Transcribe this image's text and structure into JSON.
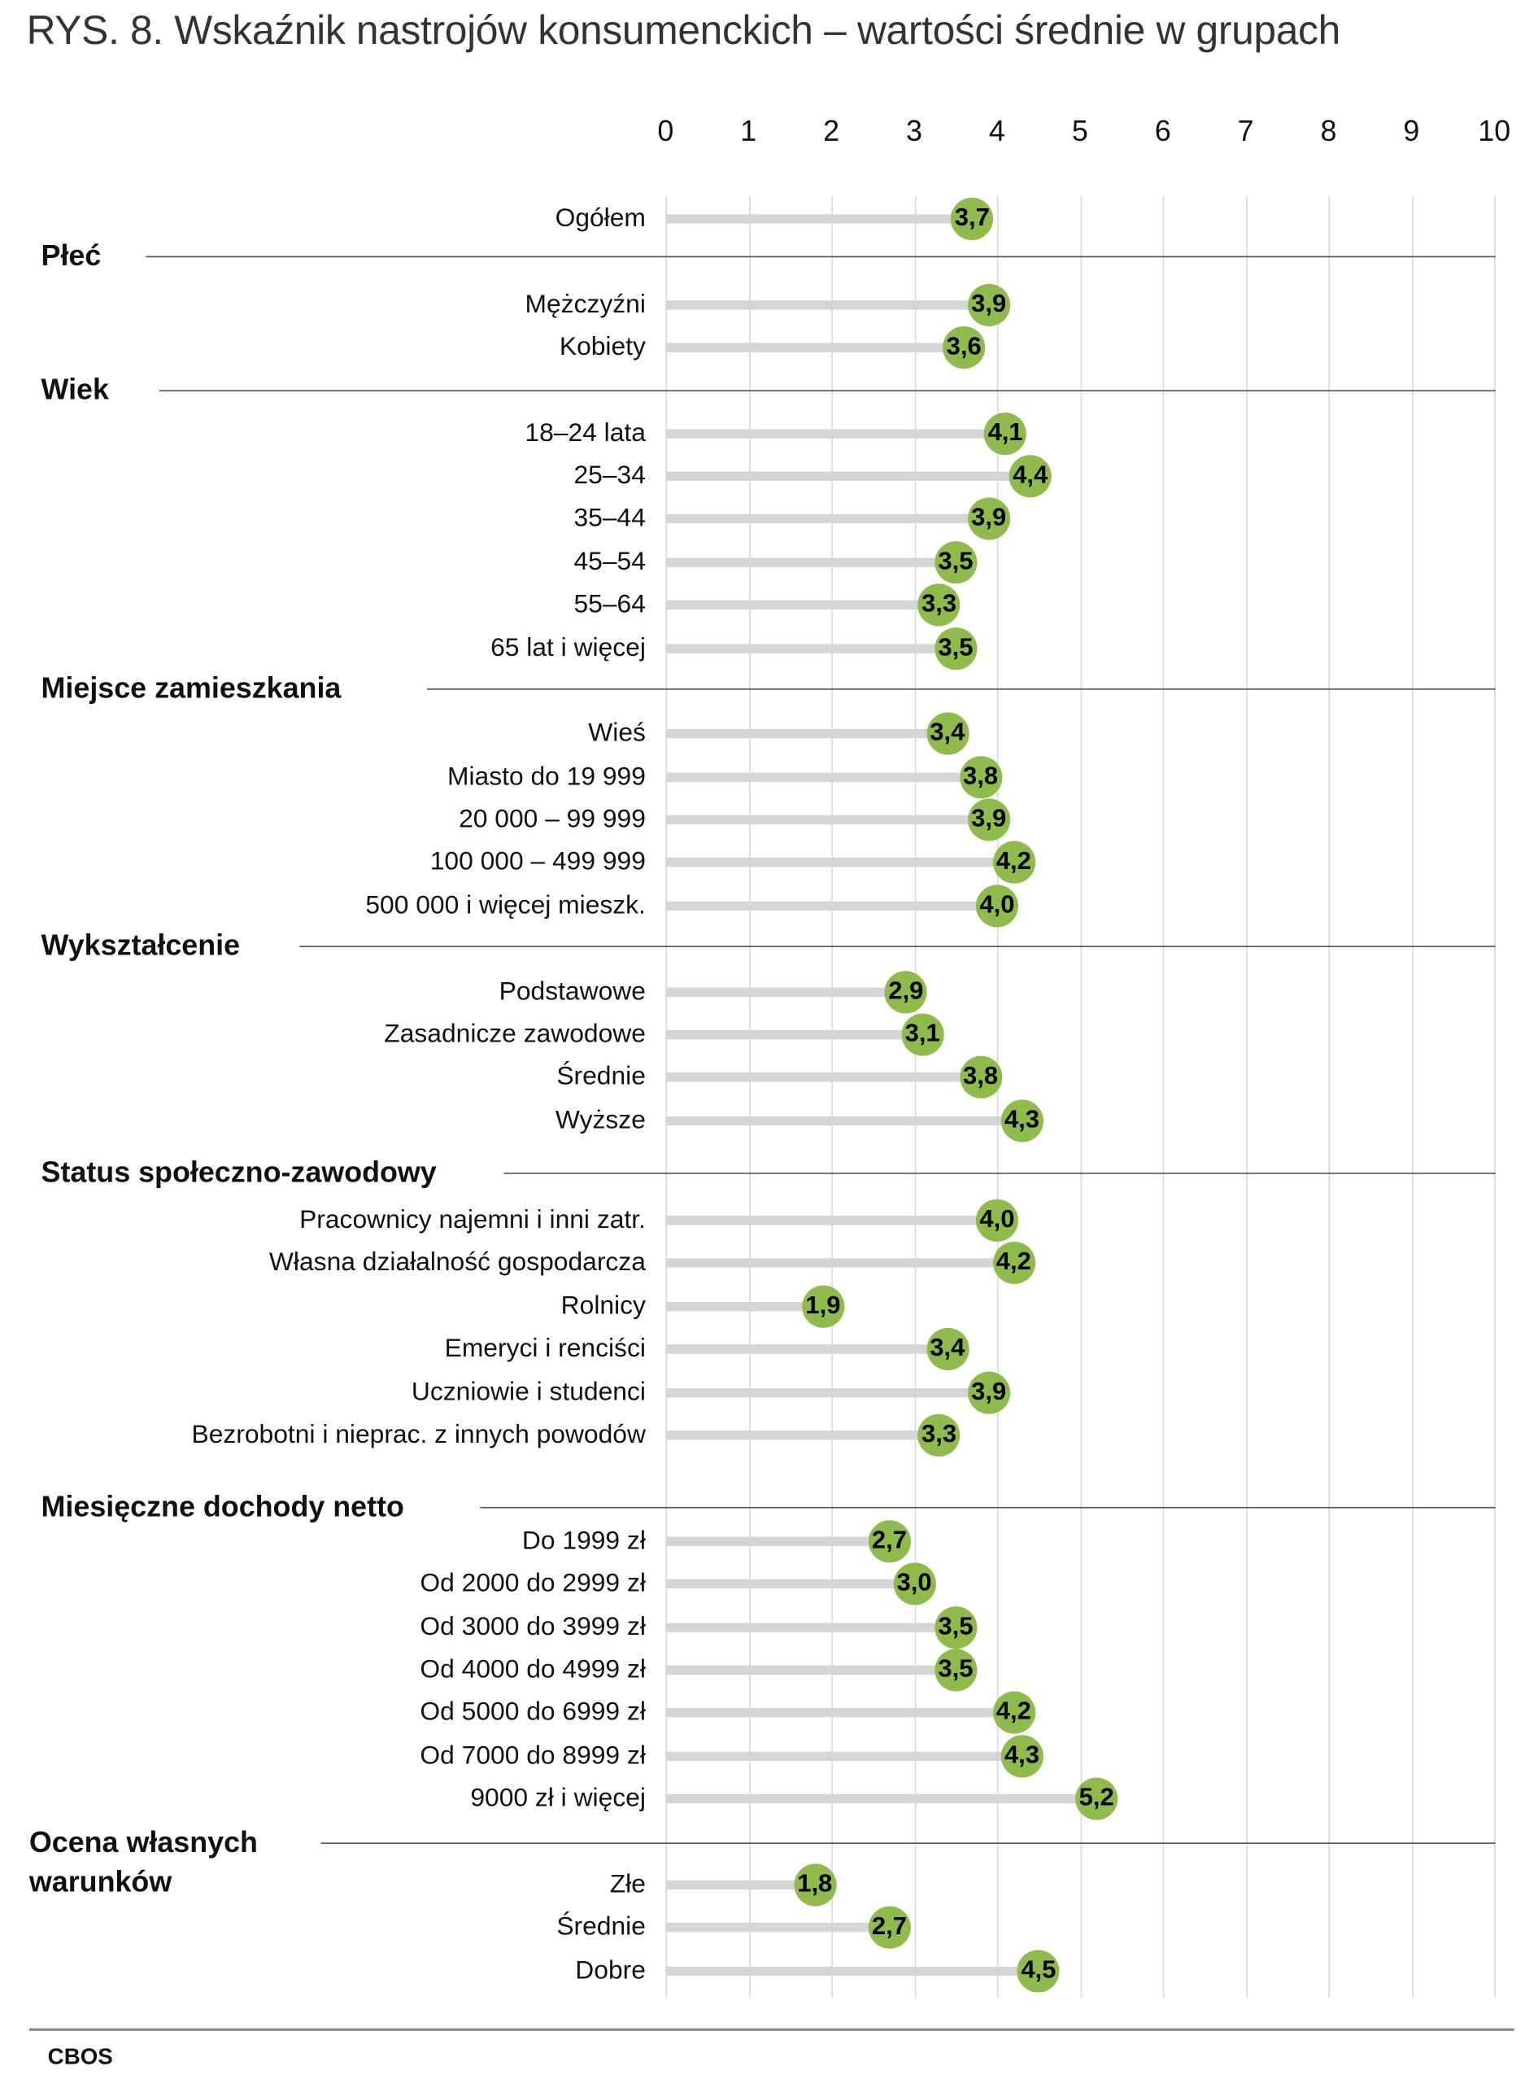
{
  "chart_data": {
    "type": "lollipop-bar",
    "title": "RYS. 8. Wskaźnik nastrojów konsumenckich – wartości średnie w grupach",
    "xlim": [
      0,
      10
    ],
    "x_ticks": [
      "0",
      "1",
      "2",
      "3",
      "4",
      "5",
      "6",
      "7",
      "8",
      "9",
      "10"
    ],
    "grid": "vertical",
    "colors": {
      "marker": "#8fbb4c",
      "bar": "#d4d6d5"
    },
    "groups": [
      {
        "name": "",
        "items": [
          {
            "label": "Ogółem",
            "value": 3.7,
            "value_label": "3,7"
          }
        ]
      },
      {
        "name": "Płeć",
        "items": [
          {
            "label": "Mężczyźni",
            "value": 3.9,
            "value_label": "3,9"
          },
          {
            "label": "Kobiety",
            "value": 3.6,
            "value_label": "3,6"
          }
        ]
      },
      {
        "name": "Wiek",
        "items": [
          {
            "label": "18–24 lata",
            "value": 4.1,
            "value_label": "4,1"
          },
          {
            "label": "25–34",
            "value": 4.4,
            "value_label": "4,4"
          },
          {
            "label": "35–44",
            "value": 3.9,
            "value_label": "3,9"
          },
          {
            "label": "45–54",
            "value": 3.5,
            "value_label": "3,5"
          },
          {
            "label": "55–64",
            "value": 3.3,
            "value_label": "3,3"
          },
          {
            "label": "65 lat i więcej",
            "value": 3.5,
            "value_label": "3,5"
          }
        ]
      },
      {
        "name": "Miejsce zamieszkania",
        "items": [
          {
            "label": "Wieś",
            "value": 3.4,
            "value_label": "3,4"
          },
          {
            "label": "Miasto do 19 999",
            "value": 3.8,
            "value_label": "3,8"
          },
          {
            "label": "20 000 – 99 999",
            "value": 3.9,
            "value_label": "3,9"
          },
          {
            "label": "100 000 – 499 999",
            "value": 4.2,
            "value_label": "4,2"
          },
          {
            "label": "500 000 i więcej mieszk.",
            "value": 4.0,
            "value_label": "4,0"
          }
        ]
      },
      {
        "name": "Wykształcenie",
        "items": [
          {
            "label": "Podstawowe",
            "value": 2.9,
            "value_label": "2,9"
          },
          {
            "label": "Zasadnicze zawodowe",
            "value": 3.1,
            "value_label": "3,1"
          },
          {
            "label": "Średnie",
            "value": 3.8,
            "value_label": "3,8"
          },
          {
            "label": "Wyższe",
            "value": 4.3,
            "value_label": "4,3"
          }
        ]
      },
      {
        "name": "Status społeczno-zawodowy",
        "items": [
          {
            "label": "Pracownicy najemni i inni zatr.",
            "value": 4.0,
            "value_label": "4,0"
          },
          {
            "label": "Własna działalność gospodarcza",
            "value": 4.2,
            "value_label": "4,2"
          },
          {
            "label": "Rolnicy",
            "value": 1.9,
            "value_label": "1,9"
          },
          {
            "label": "Emeryci i renciści",
            "value": 3.4,
            "value_label": "3,4"
          },
          {
            "label": "Uczniowie i studenci",
            "value": 3.9,
            "value_label": "3,9"
          },
          {
            "label": "Bezrobotni i nieprac. z innych powodów",
            "value": 3.3,
            "value_label": "3,3"
          }
        ]
      },
      {
        "name": "Miesięczne dochody netto",
        "items": [
          {
            "label": "Do 1999 zł",
            "value": 2.7,
            "value_label": "2,7"
          },
          {
            "label": "Od 2000 do 2999 zł",
            "value": 3.0,
            "value_label": "3,0"
          },
          {
            "label": "Od 3000 do 3999 zł",
            "value": 3.5,
            "value_label": "3,5"
          },
          {
            "label": "Od 4000 do 4999 zł",
            "value": 3.5,
            "value_label": "3,5"
          },
          {
            "label": "Od 5000 do 6999 zł",
            "value": 4.2,
            "value_label": "4,2"
          },
          {
            "label": "Od 7000 do 8999 zł",
            "value": 4.3,
            "value_label": "4,3"
          },
          {
            "label": "9000 zł i więcej",
            "value": 5.2,
            "value_label": "5,2"
          }
        ]
      },
      {
        "name": "Ocena własnych\nwarunków",
        "items": [
          {
            "label": "Złe",
            "value": 1.8,
            "value_label": "1,8"
          },
          {
            "label": "Średnie",
            "value": 2.7,
            "value_label": "2,7"
          },
          {
            "label": "Dobre",
            "value": 4.5,
            "value_label": "4,5"
          }
        ]
      }
    ]
  },
  "footer": {
    "source": "CBOS"
  }
}
